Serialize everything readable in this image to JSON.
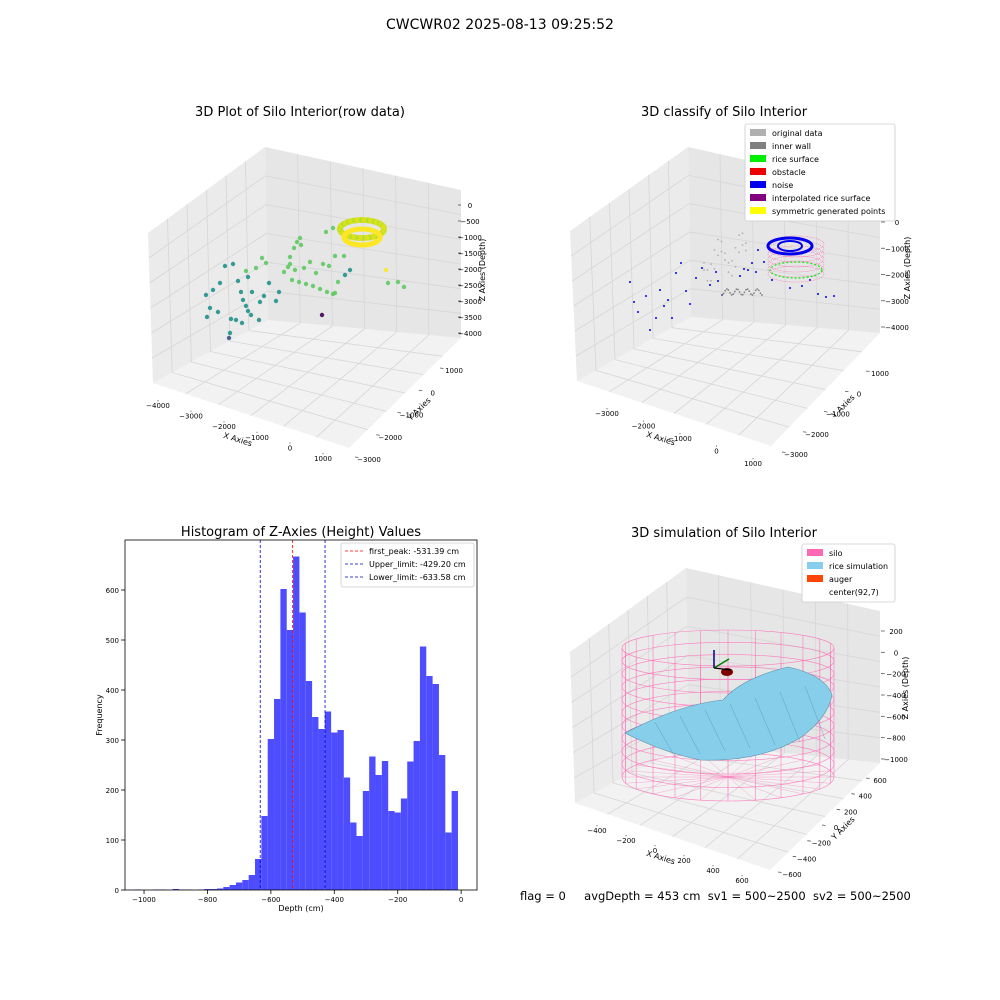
{
  "suptitle": "CWCWR02 2025-08-13 09:25:52",
  "footer": {
    "flag": "flag = 0",
    "avg_depth": "avgDepth = 453 cm",
    "sv1": "sv1 = 500~2500",
    "sv2": "sv2 = 500~2500"
  },
  "colors": {
    "original_data": "#b0b0b0",
    "inner_wall": "#808080",
    "rice_surface": "#00ee00",
    "obstacle": "#ee0000",
    "noise": "#0000ee",
    "interpolated_rice_surface": "#800080",
    "symmetric_generated_points": "#ffff00",
    "silo": "#ff69b4",
    "rice_simulation": "#87ceeb",
    "auger": "#ff4500",
    "histogram_bars": "#4d4dff",
    "first_peak_line": "#ff0000",
    "limit_lines": "#0000cc"
  },
  "chart_data": [
    {
      "type": "scatter",
      "title": "3D Plot of Silo Interior(row data)",
      "xlabel": "X Axies",
      "ylabel": "Y Axies",
      "zlabel": "Z Axies (Depth)",
      "x_ticks": [
        "−4000",
        "−3000",
        "−2000",
        "−1000",
        "0",
        "1000"
      ],
      "y_ticks": [
        "−3000",
        "−2000",
        "−1000",
        "0",
        "1000"
      ],
      "z_ticks": [
        "0",
        "−500",
        "−1000",
        "−1500",
        "−2000",
        "−2500",
        "−3000",
        "−3500",
        "−4000"
      ],
      "xlim": [
        -4200,
        1400
      ],
      "ylim": [
        -3200,
        1400
      ],
      "zlim": [
        -4300,
        0
      ],
      "colormap": "viridis (by depth)"
    },
    {
      "type": "scatter",
      "title": "3D classify of Silo Interior",
      "xlabel": "X Axies",
      "ylabel": "Y Axies",
      "zlabel": "Z Axies (Depth)",
      "x_ticks": [
        "−3000",
        "−2000",
        "−1000",
        "0",
        "1000"
      ],
      "y_ticks": [
        "−3000",
        "−2000",
        "−1000",
        "0",
        "1000"
      ],
      "z_ticks": [
        "0",
        "−1000",
        "−2000",
        "−3000",
        "−4000"
      ],
      "legend": [
        "original data",
        "inner wall",
        "rice surface",
        "obstacle",
        "noise",
        "interpolated rice surface",
        "symmetric generated points"
      ],
      "legend_placement": "top-right"
    },
    {
      "type": "bar",
      "title": "Histogram of Z-Axies (Height) Values",
      "xlabel": "Depth (cm)",
      "ylabel": "Frequency",
      "xlim": [
        -1060,
        50
      ],
      "ylim": [
        0,
        700
      ],
      "x_ticks": [
        -1000,
        -800,
        -600,
        -400,
        -200,
        0
      ],
      "y_ticks": [
        0,
        100,
        200,
        300,
        400,
        500,
        600
      ],
      "bin_width": 20,
      "bin_start": -1030,
      "values": [
        1,
        0,
        0,
        1,
        1,
        0,
        2,
        1,
        1,
        0,
        1,
        2,
        2,
        3,
        6,
        10,
        15,
        20,
        30,
        62,
        148,
        302,
        382,
        602,
        520,
        667,
        555,
        418,
        346,
        322,
        357,
        315,
        320,
        225,
        135,
        108,
        198,
        267,
        230,
        258,
        158,
        155,
        183,
        257,
        298,
        487,
        428,
        412,
        270,
        115,
        198
      ],
      "vlines": [
        {
          "label": "first_peak: -531.39 cm",
          "x": -531.39,
          "color_key": "first_peak_line"
        },
        {
          "label": "Upper_limit: -429.20 cm",
          "x": -429.2,
          "color_key": "limit_lines"
        },
        {
          "label": "Lower_limit: -633.58 cm",
          "x": -633.58,
          "color_key": "limit_lines"
        }
      ],
      "legend_placement": "top-right"
    },
    {
      "type": "surface",
      "title": "3D simulation of Silo Interior",
      "xlabel": "X Axies",
      "ylabel": "Y Axies",
      "zlabel": "Z Axies (Depth)",
      "x_ticks": [
        "−400",
        "−200",
        "0",
        "200",
        "400",
        "600"
      ],
      "y_ticks": [
        "−600",
        "−400",
        "−200",
        "0",
        "200",
        "400",
        "600"
      ],
      "z_ticks": [
        "200",
        "0",
        "−200",
        "−400",
        "−600",
        "−800",
        "−1000"
      ],
      "legend": [
        "silo",
        "rice simulation",
        "auger",
        "center(92,7)"
      ],
      "legend_placement": "top-right"
    }
  ]
}
